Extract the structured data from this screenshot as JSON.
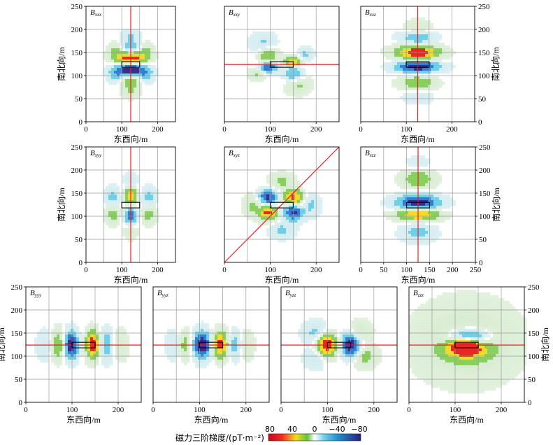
{
  "colors": {
    "positive_high": "#e8102a",
    "positive_mid": "#f3dc1e",
    "zero": "#ffffff",
    "negative_mid": "#1fb6e0",
    "negative_high": "#3a2d8f",
    "guide_line": "#e0222a",
    "grid": "#9a9a9a",
    "outline": "#000000"
  },
  "chart_data": {
    "type": "heatmap",
    "xlabel": "东西向/m",
    "ylabel": "南北向/m",
    "xlim": [
      0,
      250
    ],
    "ylim": [
      0,
      250
    ],
    "x_ticks": [
      0,
      100,
      200
    ],
    "x_ticks_wide": [
      0,
      50,
      100,
      150,
      200,
      250
    ],
    "y_ticks": [
      0,
      50,
      100,
      150,
      200,
      250
    ],
    "grid": true,
    "source_box": {
      "x0": 100,
      "x1": 150,
      "y0": 118,
      "y1": 130
    },
    "colorbar": {
      "label": "磁力三阶梯度/(pT·m⁻²)",
      "ticks": [
        "80",
        "40",
        "0",
        "−40",
        "−80"
      ],
      "range": [
        80,
        -80
      ]
    },
    "panels": [
      {
        "label": "Bxxx",
        "main": "B",
        "sub": "xxx",
        "profile": "vertical",
        "blobs": [
          [
            125,
            138,
            30,
            10,
            1.0
          ],
          [
            125,
            112,
            30,
            10,
            -1.0
          ],
          [
            125,
            160,
            22,
            10,
            -0.45
          ],
          [
            125,
            90,
            22,
            10,
            0.45
          ],
          [
            125,
            185,
            18,
            10,
            -0.25
          ],
          [
            125,
            65,
            18,
            10,
            0.25
          ],
          [
            85,
            155,
            16,
            12,
            0.3
          ],
          [
            165,
            155,
            16,
            12,
            0.3
          ],
          [
            85,
            100,
            16,
            12,
            -0.3
          ],
          [
            165,
            100,
            16,
            12,
            -0.3
          ]
        ]
      },
      {
        "label": "Bxxy",
        "main": "B",
        "sub": "xxy",
        "profile": "horizontal",
        "blobs": [
          [
            95,
            118,
            14,
            8,
            -0.8
          ],
          [
            150,
            130,
            14,
            8,
            0.8
          ],
          [
            95,
            145,
            14,
            12,
            0.55
          ],
          [
            150,
            105,
            14,
            12,
            -0.55
          ],
          [
            85,
            170,
            18,
            14,
            -0.3
          ],
          [
            160,
            80,
            18,
            14,
            0.3
          ],
          [
            70,
            105,
            12,
            10,
            0.3
          ],
          [
            175,
            145,
            12,
            10,
            -0.3
          ]
        ]
      },
      {
        "label": "Bxxz",
        "main": "B",
        "sub": "xxz",
        "profile": "vertical",
        "blobs": [
          [
            125,
            150,
            32,
            12,
            1.0
          ],
          [
            125,
            120,
            32,
            10,
            -1.0
          ],
          [
            125,
            180,
            26,
            12,
            -0.45
          ],
          [
            125,
            85,
            26,
            12,
            0.45
          ],
          [
            125,
            205,
            20,
            10,
            0.25
          ],
          [
            125,
            55,
            20,
            10,
            -0.25
          ]
        ]
      },
      {
        "label": "Bxyy",
        "main": "B",
        "sub": "xyy",
        "profile": "vertical",
        "blobs": [
          [
            125,
            145,
            12,
            14,
            0.75
          ],
          [
            125,
            100,
            12,
            14,
            -0.75
          ],
          [
            75,
            140,
            15,
            15,
            -0.35
          ],
          [
            175,
            140,
            15,
            15,
            -0.35
          ],
          [
            75,
            105,
            15,
            15,
            0.35
          ],
          [
            175,
            105,
            15,
            15,
            0.35
          ],
          [
            125,
            175,
            12,
            12,
            -0.3
          ],
          [
            125,
            70,
            12,
            12,
            0.3
          ]
        ]
      },
      {
        "label": "Bxyz",
        "main": "B",
        "sub": "xyz",
        "profile": "diagonal",
        "blobs": [
          [
            95,
            140,
            14,
            12,
            -0.85
          ],
          [
            150,
            140,
            14,
            12,
            0.85
          ],
          [
            95,
            108,
            14,
            12,
            0.85
          ],
          [
            150,
            108,
            14,
            12,
            -0.85
          ],
          [
            125,
            175,
            18,
            12,
            0.3
          ],
          [
            125,
            70,
            18,
            12,
            -0.3
          ],
          [
            60,
            124,
            12,
            16,
            0.3
          ],
          [
            190,
            124,
            12,
            16,
            -0.3
          ]
        ]
      },
      {
        "label": "Bxzz",
        "main": "B",
        "sub": "xzz",
        "profile": "vertical",
        "blobs": [
          [
            125,
            128,
            32,
            12,
            -1.0
          ],
          [
            125,
            105,
            32,
            10,
            0.9
          ],
          [
            125,
            180,
            24,
            14,
            0.45
          ],
          [
            125,
            65,
            24,
            14,
            -0.35
          ],
          [
            125,
            215,
            18,
            10,
            -0.15
          ]
        ]
      },
      {
        "label": "Byyy",
        "main": "B",
        "sub": "yyy",
        "profile": "horizontal",
        "blobs": [
          [
            98,
            124,
            10,
            20,
            -1.0
          ],
          [
            145,
            124,
            10,
            20,
            1.0
          ],
          [
            70,
            124,
            10,
            22,
            0.45
          ],
          [
            175,
            124,
            10,
            22,
            -0.45
          ],
          [
            40,
            124,
            12,
            22,
            -0.2
          ],
          [
            205,
            124,
            12,
            22,
            0.2
          ]
        ]
      },
      {
        "label": "Byyz",
        "main": "B",
        "sub": "yyz",
        "profile": "horizontal",
        "blobs": [
          [
            105,
            124,
            14,
            20,
            -1.0
          ],
          [
            145,
            124,
            12,
            20,
            0.9
          ],
          [
            70,
            124,
            12,
            20,
            0.4
          ],
          [
            175,
            124,
            12,
            20,
            -0.4
          ],
          [
            45,
            124,
            12,
            22,
            -0.2
          ],
          [
            200,
            124,
            12,
            22,
            0.2
          ]
        ]
      },
      {
        "label": "Byzz",
        "main": "B",
        "sub": "yzz",
        "profile": "horizontal",
        "blobs": [
          [
            98,
            124,
            15,
            18,
            1.0
          ],
          [
            150,
            124,
            14,
            18,
            -1.0
          ],
          [
            75,
            150,
            18,
            16,
            -0.35
          ],
          [
            180,
            100,
            18,
            16,
            0.35
          ],
          [
            170,
            155,
            16,
            14,
            0.3
          ],
          [
            75,
            95,
            16,
            14,
            -0.3
          ]
        ]
      },
      {
        "label": "Bzzz",
        "main": "B",
        "sub": "zzz",
        "profile": "horizontal",
        "blobs": [
          [
            122,
            123,
            18,
            10,
            1.0
          ],
          [
            130,
            145,
            32,
            12,
            -0.9
          ],
          [
            125,
            110,
            30,
            10,
            0.55
          ],
          [
            125,
            130,
            55,
            40,
            0.3
          ],
          [
            125,
            130,
            80,
            65,
            0.15
          ]
        ]
      }
    ]
  }
}
